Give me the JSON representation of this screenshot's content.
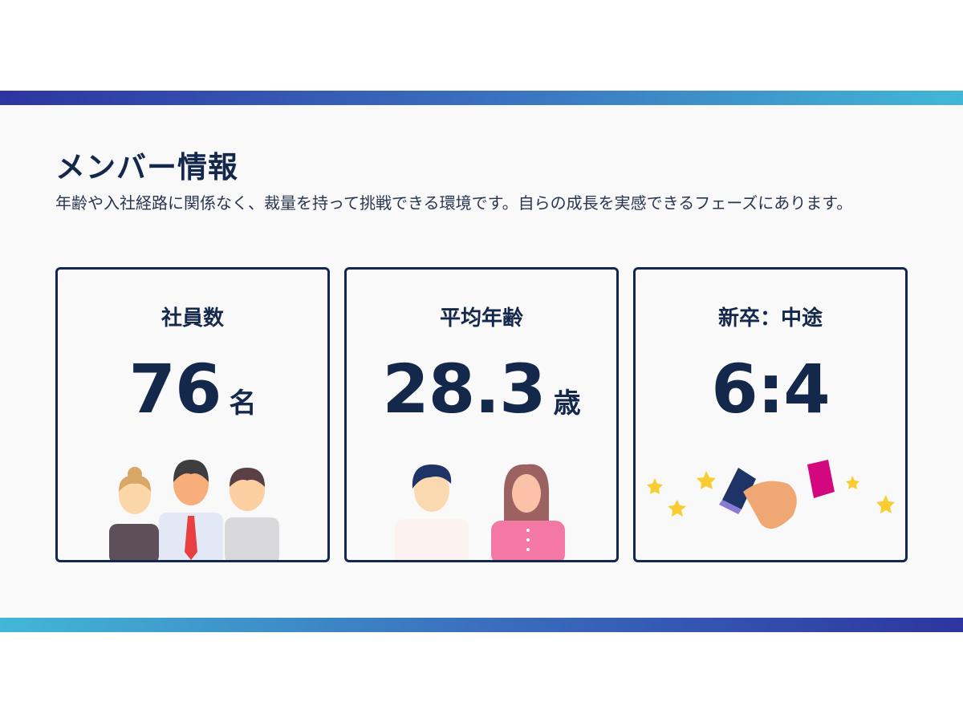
{
  "title": "メンバー情報",
  "description": "年齢や入社経路に関係なく、裁量を持って挑戦できる環境です。自らの成長を実感できるフェーズにあります。",
  "cards": [
    {
      "label": "社員数",
      "value": "76",
      "unit": "名",
      "illustration": "three-people-icon"
    },
    {
      "label": "平均年齢",
      "value": "28.3",
      "unit": "歳",
      "illustration": "man-woman-icon"
    },
    {
      "label": "新卒：中途",
      "value": "6:4",
      "unit": "",
      "illustration": "handshake-stars-icon"
    }
  ],
  "colors": {
    "navy": "#14284b",
    "gradient_start": "#2d35a0",
    "gradient_end": "#42b7d6"
  }
}
